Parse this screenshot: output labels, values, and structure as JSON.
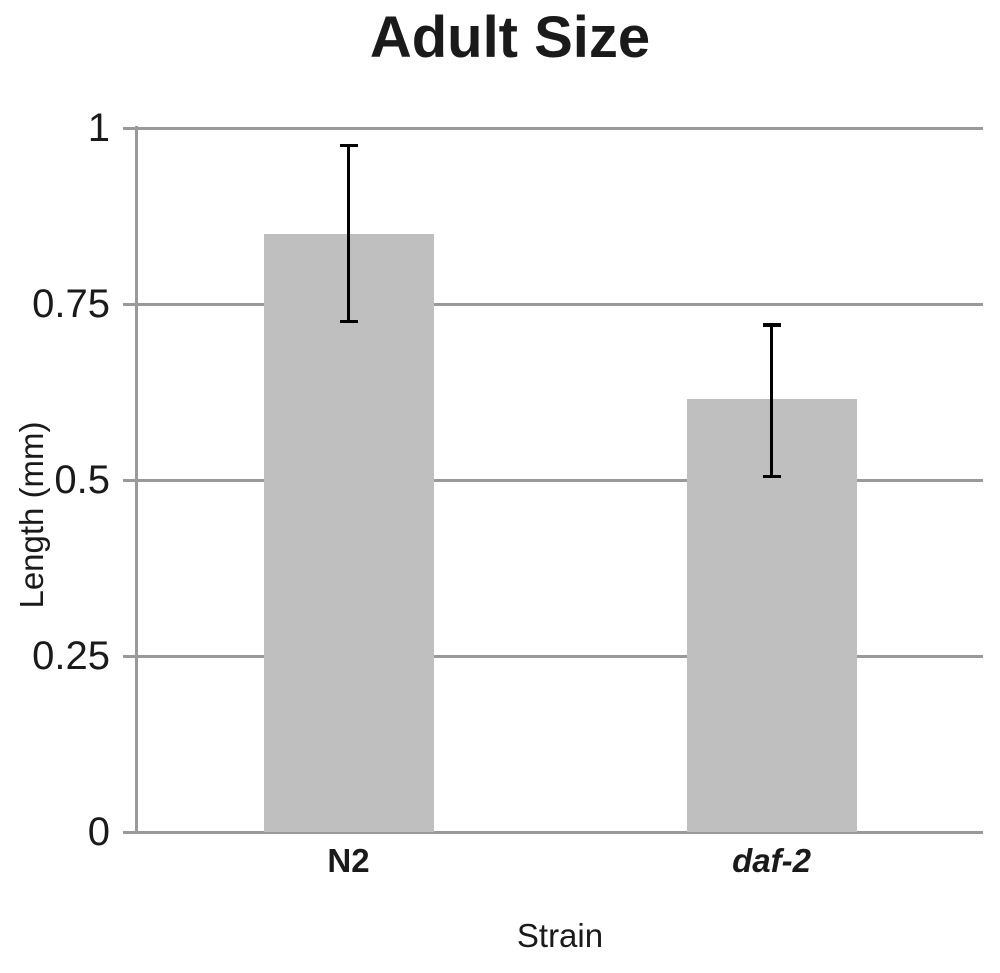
{
  "chart_data": {
    "type": "bar",
    "title": "Adult Size",
    "xlabel": "Strain",
    "ylabel": "Length (mm)",
    "categories": [
      "N2",
      "daf-2"
    ],
    "italic_categories": [
      "daf-2"
    ],
    "values": [
      0.85,
      0.615
    ],
    "error_low": [
      0.725,
      0.505
    ],
    "error_high": [
      0.975,
      0.72
    ],
    "ylim": [
      0,
      1
    ],
    "yticks": [
      0,
      0.25,
      0.5,
      0.75,
      1
    ],
    "ytick_labels": [
      "0",
      "0.25",
      "0.5",
      "0.75",
      "1"
    ],
    "grid": "horizontal",
    "legend": "none",
    "colors": {
      "bar": "#bfbfbf",
      "grid": "#999999",
      "axis": "#999999",
      "error_bar": "#000000",
      "text": "#1a1a1a",
      "background": "#ffffff"
    }
  }
}
